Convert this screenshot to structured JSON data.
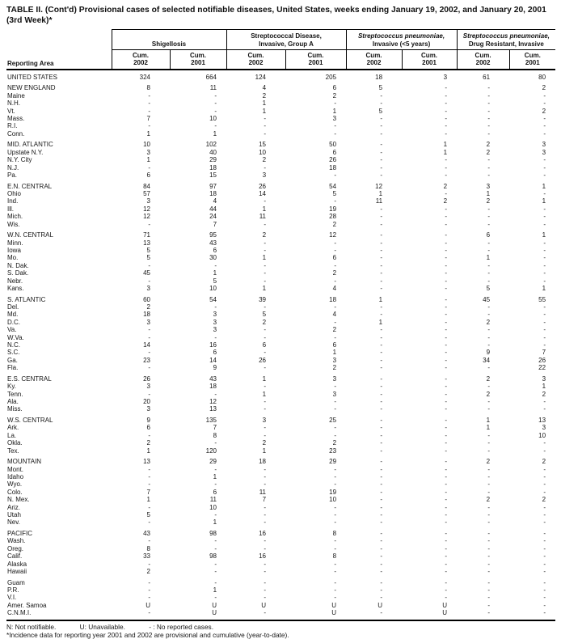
{
  "title": {
    "line1": "TABLE II. (Cont'd) Provisional cases of selected notifiable diseases, United States, weeks ending January 19, 2002, and January 20, 2001",
    "line2": "(3rd Week)*"
  },
  "table": {
    "reporting_area_label": "Reporting Area",
    "column_groups": [
      {
        "line1": "Shigellosis",
        "line2": ""
      },
      {
        "line1": "Streptococcal Disease,",
        "line2": "Invasive, Group A"
      },
      {
        "line1": "Streptococcus pneumoniae,",
        "line2": "Invasive (<5 years)"
      },
      {
        "line1": "Streptococcus pneumoniae,",
        "line2": "Drug Resistant, Invasive"
      }
    ],
    "sub_headers": [
      {
        "line1": "Cum.",
        "line2": "2002"
      },
      {
        "line1": "Cum.",
        "line2": "2001"
      },
      {
        "line1": "Cum.",
        "line2": "2002"
      },
      {
        "line1": "Cum.",
        "line2": "2001"
      },
      {
        "line1": "Cum.",
        "line2": "2002"
      },
      {
        "line1": "Cum.",
        "line2": "2001"
      },
      {
        "line1": "Cum.",
        "line2": "2002"
      },
      {
        "line1": "Cum.",
        "line2": "2001"
      }
    ],
    "rows": [
      {
        "area": "UNITED STATES",
        "gap": false,
        "values": [
          "324",
          "664",
          "124",
          "205",
          "18",
          "3",
          "61",
          "80"
        ]
      },
      {
        "area": "NEW ENGLAND",
        "gap": true,
        "values": [
          "8",
          "11",
          "4",
          "6",
          "5",
          "-",
          "-",
          "2"
        ]
      },
      {
        "area": "Maine",
        "gap": false,
        "values": [
          "-",
          "-",
          "2",
          "2",
          "-",
          "-",
          "-",
          "-"
        ]
      },
      {
        "area": "N.H.",
        "gap": false,
        "values": [
          "-",
          "-",
          "1",
          "-",
          "-",
          "-",
          "-",
          "-"
        ]
      },
      {
        "area": "Vt.",
        "gap": false,
        "values": [
          "-",
          "-",
          "1",
          "1",
          "5",
          "-",
          "-",
          "2"
        ]
      },
      {
        "area": "Mass.",
        "gap": false,
        "values": [
          "7",
          "10",
          "-",
          "3",
          "-",
          "-",
          "-",
          "-"
        ]
      },
      {
        "area": "R.I.",
        "gap": false,
        "values": [
          "-",
          "-",
          "-",
          "-",
          "-",
          "-",
          "-",
          "-"
        ]
      },
      {
        "area": "Conn.",
        "gap": false,
        "values": [
          "1",
          "1",
          "-",
          "-",
          "-",
          "-",
          "-",
          "-"
        ]
      },
      {
        "area": "MID. ATLANTIC",
        "gap": true,
        "values": [
          "10",
          "102",
          "15",
          "50",
          "-",
          "1",
          "2",
          "3"
        ]
      },
      {
        "area": "Upstate N.Y.",
        "gap": false,
        "values": [
          "3",
          "40",
          "10",
          "6",
          "-",
          "1",
          "2",
          "3"
        ]
      },
      {
        "area": "N.Y. City",
        "gap": false,
        "values": [
          "1",
          "29",
          "2",
          "26",
          "-",
          "-",
          "-",
          "-"
        ]
      },
      {
        "area": "N.J.",
        "gap": false,
        "values": [
          "-",
          "18",
          "-",
          "18",
          "-",
          "-",
          "-",
          "-"
        ]
      },
      {
        "area": "Pa.",
        "gap": false,
        "values": [
          "6",
          "15",
          "3",
          "-",
          "-",
          "-",
          "-",
          "-"
        ]
      },
      {
        "area": "E.N. CENTRAL",
        "gap": true,
        "values": [
          "84",
          "97",
          "26",
          "54",
          "12",
          "2",
          "3",
          "1"
        ]
      },
      {
        "area": "Ohio",
        "gap": false,
        "values": [
          "57",
          "18",
          "14",
          "5",
          "1",
          "-",
          "1",
          "-"
        ]
      },
      {
        "area": "Ind.",
        "gap": false,
        "values": [
          "3",
          "4",
          "-",
          "-",
          "11",
          "2",
          "2",
          "1"
        ]
      },
      {
        "area": "Ill.",
        "gap": false,
        "values": [
          "12",
          "44",
          "1",
          "19",
          "-",
          "-",
          "-",
          "-"
        ]
      },
      {
        "area": "Mich.",
        "gap": false,
        "values": [
          "12",
          "24",
          "11",
          "28",
          "-",
          "-",
          "-",
          "-"
        ]
      },
      {
        "area": "Wis.",
        "gap": false,
        "values": [
          "-",
          "7",
          "-",
          "2",
          "-",
          "-",
          "-",
          "-"
        ]
      },
      {
        "area": "W.N. CENTRAL",
        "gap": true,
        "values": [
          "71",
          "95",
          "2",
          "12",
          "-",
          "-",
          "6",
          "1"
        ]
      },
      {
        "area": "Minn.",
        "gap": false,
        "values": [
          "13",
          "43",
          "-",
          "-",
          "-",
          "-",
          "-",
          "-"
        ]
      },
      {
        "area": "Iowa",
        "gap": false,
        "values": [
          "5",
          "6",
          "-",
          "-",
          "-",
          "-",
          "-",
          "-"
        ]
      },
      {
        "area": "Mo.",
        "gap": false,
        "values": [
          "5",
          "30",
          "1",
          "6",
          "-",
          "-",
          "1",
          "-"
        ]
      },
      {
        "area": "N. Dak.",
        "gap": false,
        "values": [
          "-",
          "-",
          "-",
          "-",
          "-",
          "-",
          "-",
          "-"
        ]
      },
      {
        "area": "S. Dak.",
        "gap": false,
        "values": [
          "45",
          "1",
          "-",
          "2",
          "-",
          "-",
          "-",
          "-"
        ]
      },
      {
        "area": "Nebr.",
        "gap": false,
        "values": [
          "-",
          "5",
          "-",
          "-",
          "-",
          "-",
          "-",
          "-"
        ]
      },
      {
        "area": "Kans.",
        "gap": false,
        "values": [
          "3",
          "10",
          "1",
          "4",
          "-",
          "-",
          "5",
          "1"
        ]
      },
      {
        "area": "S. ATLANTIC",
        "gap": true,
        "values": [
          "60",
          "54",
          "39",
          "18",
          "1",
          "-",
          "45",
          "55"
        ]
      },
      {
        "area": "Del.",
        "gap": false,
        "values": [
          "2",
          "-",
          "-",
          "-",
          "-",
          "-",
          "-",
          "-"
        ]
      },
      {
        "area": "Md.",
        "gap": false,
        "values": [
          "18",
          "3",
          "5",
          "4",
          "-",
          "-",
          "-",
          "-"
        ]
      },
      {
        "area": "D.C.",
        "gap": false,
        "values": [
          "3",
          "3",
          "2",
          "-",
          "1",
          "-",
          "2",
          "-"
        ]
      },
      {
        "area": "Va.",
        "gap": false,
        "values": [
          "-",
          "3",
          "-",
          "2",
          "-",
          "-",
          "-",
          "-"
        ]
      },
      {
        "area": "W.Va.",
        "gap": false,
        "values": [
          "-",
          "-",
          "-",
          "-",
          "-",
          "-",
          "-",
          "-"
        ]
      },
      {
        "area": "N.C.",
        "gap": false,
        "values": [
          "14",
          "16",
          "6",
          "6",
          "-",
          "-",
          "-",
          "-"
        ]
      },
      {
        "area": "S.C.",
        "gap": false,
        "values": [
          "-",
          "6",
          "-",
          "1",
          "-",
          "-",
          "9",
          "7"
        ]
      },
      {
        "area": "Ga.",
        "gap": false,
        "values": [
          "23",
          "14",
          "26",
          "3",
          "-",
          "-",
          "34",
          "26"
        ]
      },
      {
        "area": "Fla.",
        "gap": false,
        "values": [
          "-",
          "9",
          "-",
          "2",
          "-",
          "-",
          "-",
          "22"
        ]
      },
      {
        "area": "E.S. CENTRAL",
        "gap": true,
        "values": [
          "26",
          "43",
          "1",
          "3",
          "-",
          "-",
          "2",
          "3"
        ]
      },
      {
        "area": "Ky.",
        "gap": false,
        "values": [
          "3",
          "18",
          "-",
          "-",
          "-",
          "-",
          "-",
          "1"
        ]
      },
      {
        "area": "Tenn.",
        "gap": false,
        "values": [
          "-",
          "-",
          "1",
          "3",
          "-",
          "-",
          "2",
          "2"
        ]
      },
      {
        "area": "Ala.",
        "gap": false,
        "values": [
          "20",
          "12",
          "-",
          "-",
          "-",
          "-",
          "-",
          "-"
        ]
      },
      {
        "area": "Miss.",
        "gap": false,
        "values": [
          "3",
          "13",
          "-",
          "-",
          "-",
          "-",
          "-",
          "-"
        ]
      },
      {
        "area": "W.S. CENTRAL",
        "gap": true,
        "values": [
          "9",
          "135",
          "3",
          "25",
          "-",
          "-",
          "1",
          "13"
        ]
      },
      {
        "area": "Ark.",
        "gap": false,
        "values": [
          "6",
          "7",
          "-",
          "-",
          "-",
          "-",
          "1",
          "3"
        ]
      },
      {
        "area": "La.",
        "gap": false,
        "values": [
          "-",
          "8",
          "-",
          "-",
          "-",
          "-",
          "-",
          "10"
        ]
      },
      {
        "area": "Okla.",
        "gap": false,
        "values": [
          "2",
          "-",
          "2",
          "2",
          "-",
          "-",
          "-",
          "-"
        ]
      },
      {
        "area": "Tex.",
        "gap": false,
        "values": [
          "1",
          "120",
          "1",
          "23",
          "-",
          "-",
          "-",
          "-"
        ]
      },
      {
        "area": "MOUNTAIN",
        "gap": true,
        "values": [
          "13",
          "29",
          "18",
          "29",
          "-",
          "-",
          "2",
          "2"
        ]
      },
      {
        "area": "Mont.",
        "gap": false,
        "values": [
          "-",
          "-",
          "-",
          "-",
          "-",
          "-",
          "-",
          "-"
        ]
      },
      {
        "area": "Idaho",
        "gap": false,
        "values": [
          "-",
          "1",
          "-",
          "-",
          "-",
          "-",
          "-",
          "-"
        ]
      },
      {
        "area": "Wyo.",
        "gap": false,
        "values": [
          "-",
          "-",
          "-",
          "-",
          "-",
          "-",
          "-",
          "-"
        ]
      },
      {
        "area": "Colo.",
        "gap": false,
        "values": [
          "7",
          "6",
          "11",
          "19",
          "-",
          "-",
          "-",
          "-"
        ]
      },
      {
        "area": "N. Mex.",
        "gap": false,
        "values": [
          "1",
          "11",
          "7",
          "10",
          "-",
          "-",
          "2",
          "2"
        ]
      },
      {
        "area": "Ariz.",
        "gap": false,
        "values": [
          "-",
          "10",
          "-",
          "-",
          "-",
          "-",
          "-",
          "-"
        ]
      },
      {
        "area": "Utah",
        "gap": false,
        "values": [
          "5",
          "-",
          "-",
          "-",
          "-",
          "-",
          "-",
          "-"
        ]
      },
      {
        "area": "Nev.",
        "gap": false,
        "values": [
          "-",
          "1",
          "-",
          "-",
          "-",
          "-",
          "-",
          "-"
        ]
      },
      {
        "area": "PACIFIC",
        "gap": true,
        "values": [
          "43",
          "98",
          "16",
          "8",
          "-",
          "-",
          "-",
          "-"
        ]
      },
      {
        "area": "Wash.",
        "gap": false,
        "values": [
          "-",
          "-",
          "-",
          "-",
          "-",
          "-",
          "-",
          "-"
        ]
      },
      {
        "area": "Oreg.",
        "gap": false,
        "values": [
          "8",
          "-",
          "-",
          "-",
          "-",
          "-",
          "-",
          "-"
        ]
      },
      {
        "area": "Calif.",
        "gap": false,
        "values": [
          "33",
          "98",
          "16",
          "8",
          "-",
          "-",
          "-",
          "-"
        ]
      },
      {
        "area": "Alaska",
        "gap": false,
        "values": [
          "-",
          "-",
          "-",
          "-",
          "-",
          "-",
          "-",
          "-"
        ]
      },
      {
        "area": "Hawaii",
        "gap": false,
        "values": [
          "2",
          "-",
          "-",
          "-",
          "-",
          "-",
          "-",
          "-"
        ]
      },
      {
        "area": "Guam",
        "gap": true,
        "values": [
          "-",
          "-",
          "-",
          "-",
          "-",
          "-",
          "-",
          "-"
        ]
      },
      {
        "area": "P.R.",
        "gap": false,
        "values": [
          "-",
          "1",
          "-",
          "-",
          "-",
          "-",
          "-",
          "-"
        ]
      },
      {
        "area": "V.I.",
        "gap": false,
        "values": [
          "-",
          "-",
          "-",
          "-",
          "-",
          "-",
          "-",
          "-"
        ]
      },
      {
        "area": "Amer. Samoa",
        "gap": false,
        "values": [
          "U",
          "U",
          "U",
          "U",
          "U",
          "U",
          "-",
          "-"
        ]
      },
      {
        "area": "C.N.M.I.",
        "gap": false,
        "values": [
          "-",
          "U",
          "-",
          "U",
          "-",
          "U",
          "-",
          "-"
        ]
      }
    ]
  },
  "footnotes": {
    "n": "N: Not notifiable.",
    "u": "U: Unavailable.",
    "dash": "- : No reported cases.",
    "incidence": "*Incidence data for reporting year 2001 and 2002 are provisional and cumulative (year-to-date)."
  }
}
